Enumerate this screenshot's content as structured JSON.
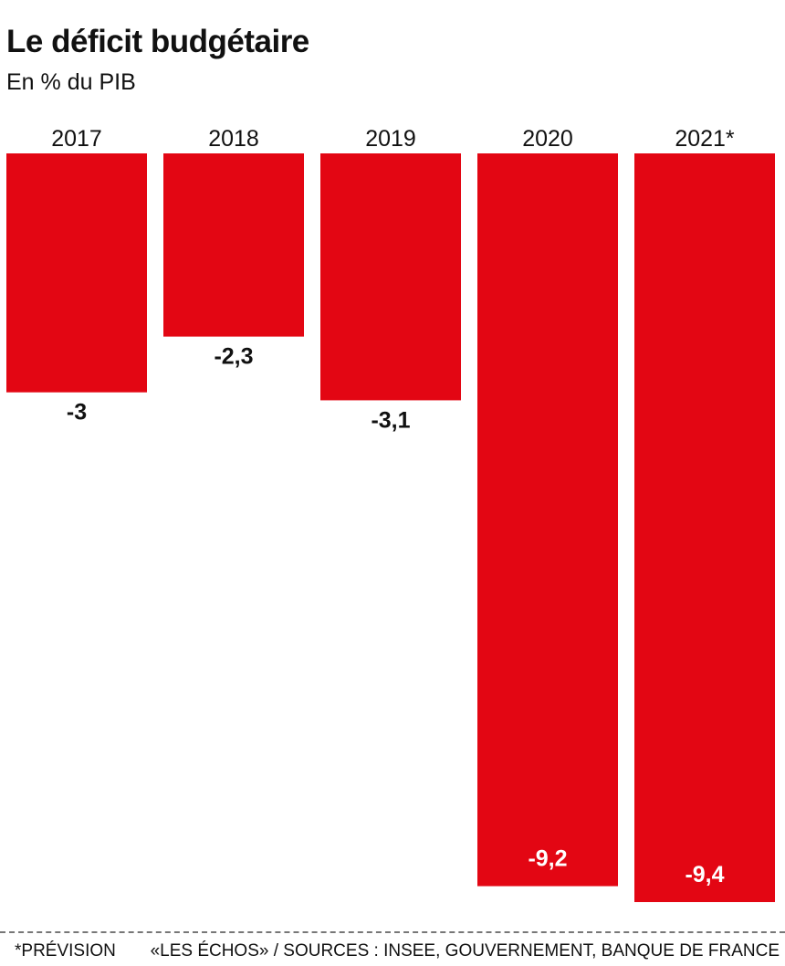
{
  "chart_data": {
    "type": "bar",
    "title": "Le déficit budgétaire",
    "subtitle": "En % du PIB",
    "categories": [
      "2017",
      "2018",
      "2019",
      "2020",
      "2021*"
    ],
    "values": [
      -3,
      -2.3,
      -3.1,
      -9.2,
      -9.4
    ],
    "value_labels": [
      "-3",
      "-2,3",
      "-3,1",
      "-9,2",
      "-9,4"
    ],
    "ylim": [
      -9.4,
      0
    ],
    "grid": false,
    "legend": "none",
    "bar_color": "#e30613"
  },
  "footer": {
    "note": "*PRÉVISION",
    "source": "«LES ÉCHOS» / SOURCES : INSEE, GOUVERNEMENT, BANQUE DE FRANCE"
  }
}
